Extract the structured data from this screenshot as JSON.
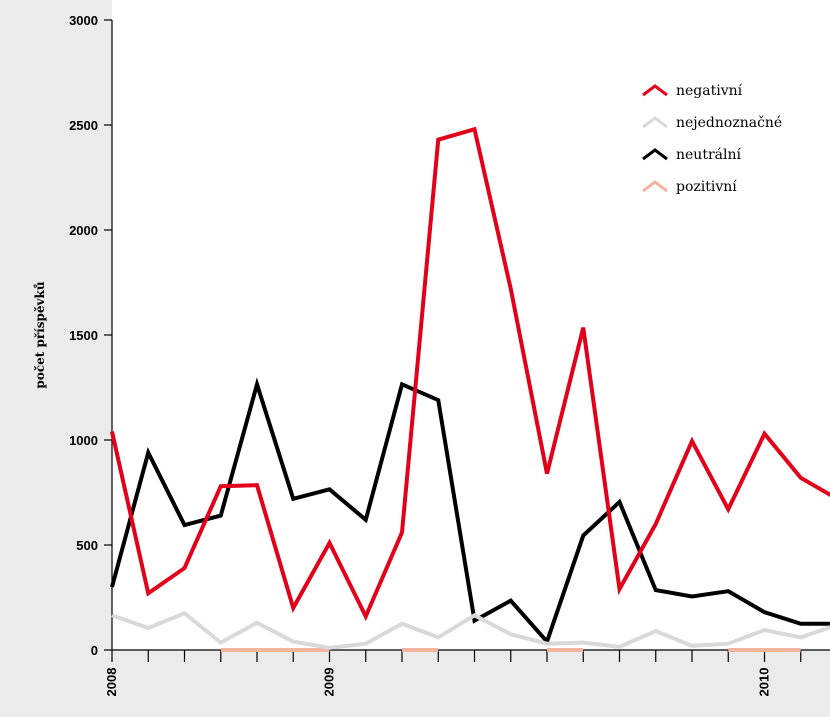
{
  "chart_data": {
    "type": "line",
    "title": "",
    "xlabel": "",
    "ylabel": "počet příspěvků",
    "ylim": [
      0,
      3000
    ],
    "yticks": [
      0,
      500,
      1000,
      1500,
      2000,
      2500,
      3000
    ],
    "x_labels": [
      {
        "index": 0,
        "label": "2008"
      },
      {
        "index": 6,
        "label": "2009"
      },
      {
        "index": 18,
        "label": "2010"
      }
    ],
    "n_points": 21,
    "legend": "top-right",
    "series": [
      {
        "name": "negativní",
        "color": "#e2001a",
        "values": [
          1040,
          270,
          390,
          780,
          785,
          200,
          510,
          160,
          560,
          2430,
          2480,
          1720,
          840,
          1535,
          290,
          600,
          995,
          670,
          1030,
          820,
          720
        ]
      },
      {
        "name": "nejednoznačné",
        "color": "#d9d9d9",
        "values": [
          165,
          105,
          175,
          35,
          130,
          40,
          10,
          30,
          125,
          60,
          165,
          75,
          30,
          35,
          15,
          90,
          20,
          30,
          95,
          60,
          120
        ]
      },
      {
        "name": "neutrální",
        "color": "#000000",
        "values": [
          300,
          940,
          595,
          640,
          1265,
          720,
          765,
          620,
          1265,
          1190,
          140,
          235,
          40,
          545,
          705,
          285,
          255,
          280,
          180,
          125,
          125
        ]
      },
      {
        "name": "pozitivní",
        "color": "#f4b49f",
        "values": [
          0,
          0,
          0,
          0,
          0,
          0,
          0,
          0,
          0,
          0,
          0,
          0,
          0,
          0,
          0,
          0,
          0,
          0,
          0,
          0,
          0
        ],
        "visible_segments": [
          [
            3,
            6
          ],
          [
            8,
            9
          ],
          [
            12,
            13
          ],
          [
            17,
            19
          ]
        ]
      }
    ]
  }
}
